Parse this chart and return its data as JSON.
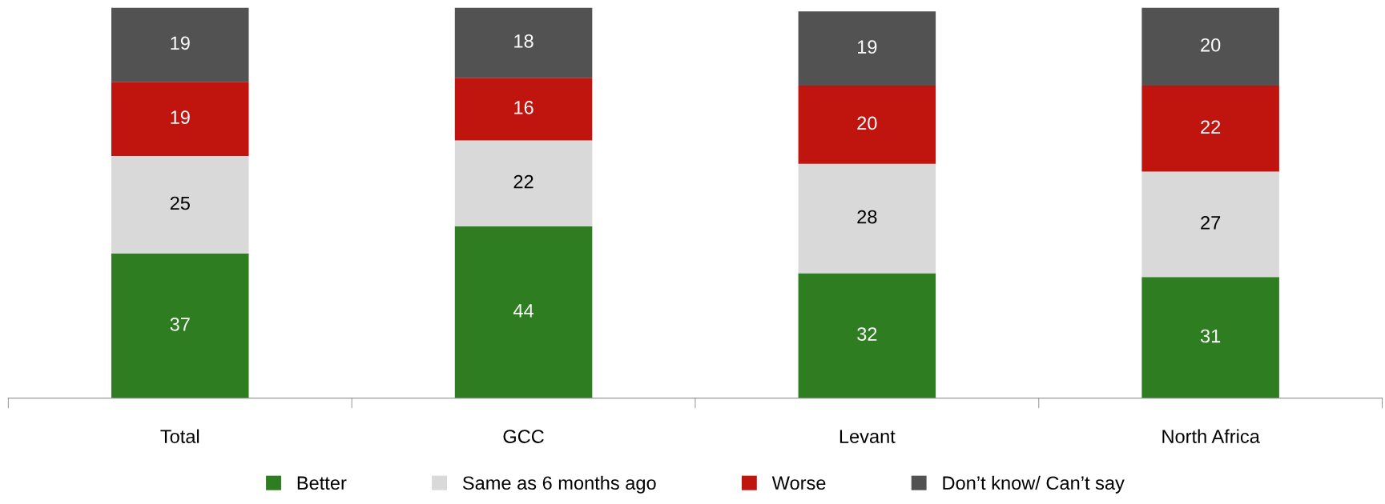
{
  "chart_data": {
    "type": "bar",
    "stacked": true,
    "data_labels": true,
    "legend": "bottom",
    "grid": false,
    "categories": [
      "Total",
      "GCC",
      "Levant",
      "North Africa"
    ],
    "series": [
      {
        "name": "Better",
        "color": "#2e7d20",
        "values": [
          37,
          44,
          32,
          31
        ]
      },
      {
        "name": "Same as 6 months ago",
        "color": "#d9d9d9",
        "values": [
          25,
          22,
          28,
          27
        ]
      },
      {
        "name": "Worse",
        "color": "#c0150f",
        "values": [
          19,
          16,
          20,
          22
        ]
      },
      {
        "name": "Don’t know/ Can’t say",
        "color": "#525252",
        "values": [
          19,
          18,
          19,
          20
        ]
      }
    ]
  }
}
